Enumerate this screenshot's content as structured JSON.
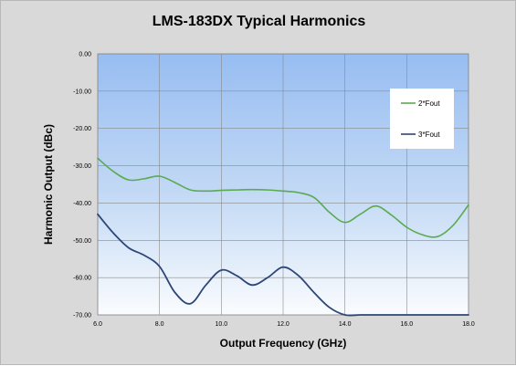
{
  "chart_data": {
    "type": "line",
    "title": "LMS-183DX Typical Harmonics",
    "xlabel": "Output Frequency (GHz)",
    "ylabel": "Harmonic Output (dBc)",
    "xlim": [
      6.0,
      18.0
    ],
    "ylim": [
      -70.0,
      0.0
    ],
    "xticks": [
      "6.0",
      "8.0",
      "10.0",
      "12.0",
      "14.0",
      "16.0",
      "18.0"
    ],
    "yticks": [
      "0.00",
      "-10.00",
      "-20.00",
      "-30.00",
      "-40.00",
      "-50.00",
      "-60.00",
      "-70.00"
    ],
    "grid": true,
    "legend_position": "top-right",
    "series": [
      {
        "name": "2*Fout",
        "color": "#5aaa50",
        "x": [
          6.0,
          6.5,
          7.0,
          7.5,
          8.0,
          8.5,
          9.0,
          9.5,
          10.0,
          10.5,
          11.0,
          11.5,
          12.0,
          12.5,
          13.0,
          13.5,
          14.0,
          14.5,
          15.0,
          15.5,
          16.0,
          16.5,
          17.0,
          17.5,
          18.0
        ],
        "y": [
          -28.0,
          -31.5,
          -33.8,
          -33.5,
          -32.8,
          -34.5,
          -36.5,
          -36.8,
          -36.6,
          -36.5,
          -36.4,
          -36.5,
          -36.8,
          -37.2,
          -38.5,
          -42.5,
          -45.2,
          -43.0,
          -40.8,
          -43.2,
          -46.5,
          -48.5,
          -49.0,
          -46.0,
          -40.5
        ]
      },
      {
        "name": "3*Fout",
        "color": "#2c4678",
        "x": [
          6.0,
          6.5,
          7.0,
          7.5,
          8.0,
          8.5,
          9.0,
          9.5,
          10.0,
          10.5,
          11.0,
          11.5,
          12.0,
          12.5,
          13.0,
          13.5,
          14.0,
          14.5,
          15.0,
          15.5,
          16.0,
          16.5,
          17.0,
          17.5,
          18.0
        ],
        "y": [
          -43.0,
          -48.0,
          -52.0,
          -54.0,
          -57.0,
          -64.0,
          -67.0,
          -62.0,
          -58.0,
          -59.5,
          -62.0,
          -60.0,
          -57.2,
          -59.5,
          -64.0,
          -68.0,
          -70.0,
          -70.0,
          -70.0,
          -70.0,
          -70.0,
          -70.0,
          -70.0,
          -70.0,
          -70.0
        ]
      }
    ]
  }
}
